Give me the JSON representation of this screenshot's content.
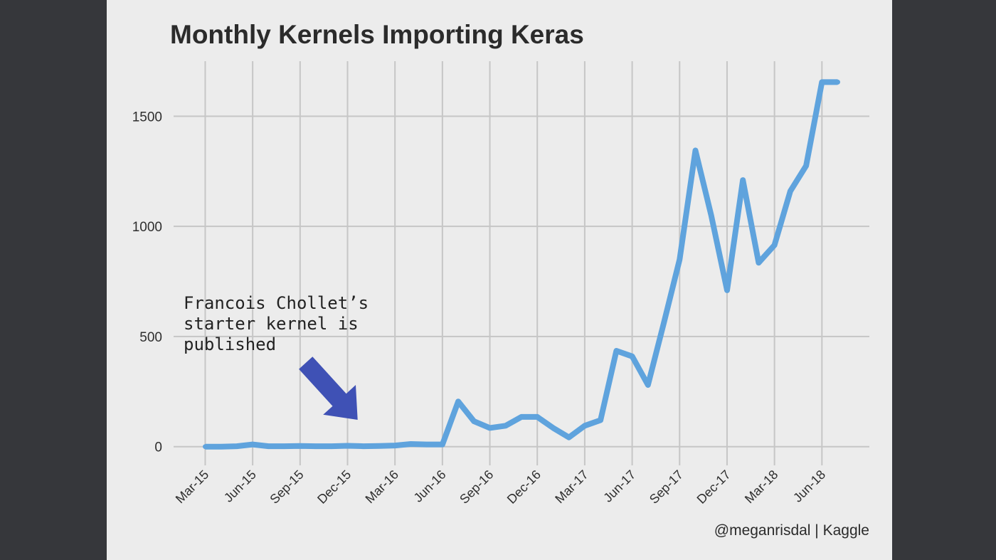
{
  "chart_data": {
    "type": "line",
    "title": "Monthly Kernels Importing Keras",
    "xlabel": "",
    "ylabel": "",
    "ylim": [
      -85,
      1750
    ],
    "yticks": [
      0,
      500,
      1000,
      1500
    ],
    "ytick_labels": [
      "0",
      "500",
      "1000",
      "1500"
    ],
    "xtick_labels": [
      "Mar-15",
      "Jun-15",
      "Sep-15",
      "Dec-15",
      "Mar-16",
      "Jun-16",
      "Sep-16",
      "Dec-16",
      "Mar-17",
      "Jun-17",
      "Sep-17",
      "Dec-17",
      "Mar-18",
      "Jun-18"
    ],
    "months": [
      "2015-03",
      "2015-04",
      "2015-05",
      "2015-06",
      "2015-07",
      "2015-08",
      "2015-09",
      "2015-10",
      "2015-11",
      "2015-12",
      "2016-01",
      "2016-02",
      "2016-03",
      "2016-04",
      "2016-05",
      "2016-06",
      "2016-07",
      "2016-08",
      "2016-09",
      "2016-10",
      "2016-11",
      "2016-12",
      "2017-01",
      "2017-02",
      "2017-03",
      "2017-04",
      "2017-05",
      "2017-06",
      "2017-07",
      "2017-08",
      "2017-09",
      "2017-10",
      "2017-11",
      "2017-12",
      "2018-01",
      "2018-02",
      "2018-03",
      "2018-04",
      "2018-05",
      "2018-06",
      "2018-07"
    ],
    "series": [
      {
        "name": "kernels",
        "color": "#5fa3dd",
        "values": [
          0,
          0,
          2,
          10,
          2,
          2,
          3,
          2,
          2,
          4,
          2,
          3,
          5,
          12,
          10,
          10,
          205,
          115,
          85,
          95,
          135,
          135,
          85,
          42,
          95,
          120,
          435,
          410,
          280,
          560,
          850,
          1345,
          1050,
          710,
          1210,
          835,
          915,
          1160,
          1275,
          1655,
          1655
        ]
      }
    ],
    "annotation": {
      "text_lines": [
        "Francois Chollet’s",
        "starter kernel is",
        "published"
      ],
      "points_to": "2016-01",
      "arrow_color": "#3f51b5"
    },
    "grid": true,
    "legend": "none"
  },
  "footer": {
    "credit": "@meganrisdal | Kaggle"
  }
}
